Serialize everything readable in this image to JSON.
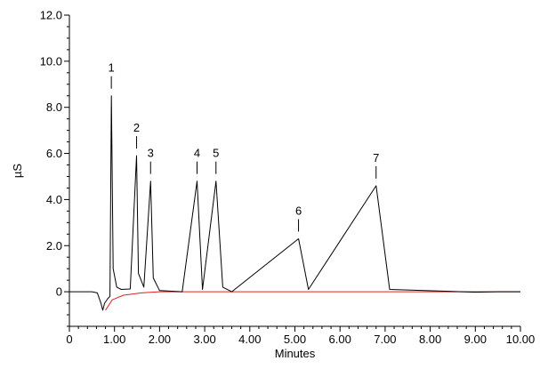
{
  "chart_data": {
    "type": "line",
    "xlabel": "Minutes",
    "ylabel": "µS",
    "xlim": [
      0,
      10
    ],
    "ylim": [
      -1.5,
      12
    ],
    "x_ticks": [
      "0",
      "1.00",
      "2.00",
      "3.00",
      "4.00",
      "5.00",
      "6.00",
      "7.00",
      "8.00",
      "9.00",
      "10.00"
    ],
    "y_ticks": [
      "0",
      "2.0",
      "4.0",
      "6.0",
      "8.0",
      "10.0",
      "12.0"
    ],
    "grid": false,
    "colors": {
      "trace": "#000000",
      "baseline": "#e02020"
    },
    "peaks": [
      {
        "label": "1",
        "time": 0.93,
        "height": 8.5
      },
      {
        "label": "2",
        "time": 1.49,
        "height": 5.9
      },
      {
        "label": "3",
        "time": 1.8,
        "height": 4.8
      },
      {
        "label": "4",
        "time": 2.83,
        "height": 4.8
      },
      {
        "label": "5",
        "time": 3.25,
        "height": 4.8
      },
      {
        "label": "6",
        "time": 5.08,
        "height": 2.3
      },
      {
        "label": "7",
        "time": 6.8,
        "height": 4.6
      }
    ],
    "series": [
      {
        "values": [
          [
            0.0,
            0.0
          ],
          [
            0.5,
            0.0
          ],
          [
            0.62,
            -0.05
          ],
          [
            0.7,
            -0.5
          ],
          [
            0.74,
            -0.8
          ],
          [
            0.78,
            -0.5
          ],
          [
            0.85,
            -0.3
          ],
          [
            0.9,
            -0.2
          ],
          [
            0.93,
            8.5
          ],
          [
            0.97,
            1.0
          ],
          [
            1.05,
            0.2
          ],
          [
            1.15,
            0.1
          ],
          [
            1.35,
            0.12
          ],
          [
            1.49,
            5.9
          ],
          [
            1.53,
            0.8
          ],
          [
            1.65,
            0.2
          ],
          [
            1.8,
            4.8
          ],
          [
            1.86,
            0.6
          ],
          [
            2.0,
            0.05
          ],
          [
            2.5,
            0.0
          ],
          [
            2.83,
            4.8
          ],
          [
            2.95,
            0.1
          ],
          [
            3.25,
            4.8
          ],
          [
            3.4,
            0.2
          ],
          [
            3.6,
            0.0
          ],
          [
            5.08,
            2.3
          ],
          [
            5.3,
            0.1
          ],
          [
            6.8,
            4.6
          ],
          [
            7.1,
            0.1
          ],
          [
            9.0,
            -0.02
          ],
          [
            9.5,
            0.0
          ],
          [
            10.0,
            0.0
          ]
        ]
      },
      {
        "values": [
          [
            0.8,
            -0.8
          ],
          [
            0.95,
            -0.35
          ],
          [
            1.2,
            -0.15
          ],
          [
            1.6,
            -0.05
          ],
          [
            2.0,
            0.0
          ],
          [
            10.0,
            0.0
          ]
        ]
      }
    ]
  }
}
